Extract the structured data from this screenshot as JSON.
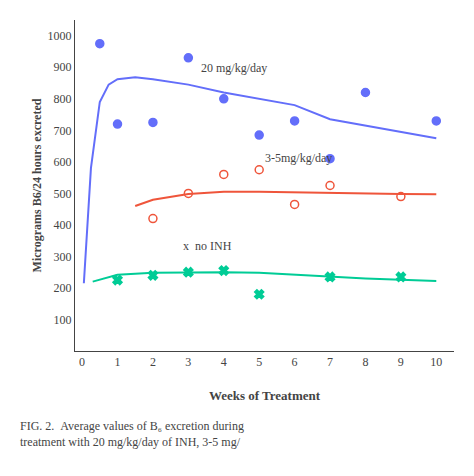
{
  "chart_data": {
    "type": "scatter",
    "xlabel": "Weeks of Treatment",
    "ylabel": "Micrograms B6/24 hours excreted",
    "caption": "FIG. 2.  Average values of B₆ excretion during\ntreatment with 20 mg/kg/day of INH, 3-5 mg/",
    "xlim": [
      -0.2,
      10.5
    ],
    "ylim": [
      0,
      1050
    ],
    "xticks": [
      0,
      1,
      2,
      3,
      4,
      5,
      6,
      7,
      8,
      9,
      10
    ],
    "yticks": [
      100,
      200,
      300,
      400,
      500,
      600,
      700,
      800,
      900,
      1000
    ],
    "grid": false,
    "series": [
      {
        "marker": "circle",
        "line_style": "solid",
        "x": [
          0.5,
          1,
          2,
          3,
          4,
          5,
          6,
          7,
          8,
          10
        ],
        "values": [
          975,
          720,
          725,
          930,
          800,
          685,
          730,
          610,
          820,
          730
        ],
        "curve_x": [
          0.05,
          0.25,
          0.5,
          0.75,
          1.0,
          1.5,
          2.0,
          3.0,
          4.0,
          5.0,
          6.0,
          7.0,
          8.0,
          9.0,
          10.0
        ],
        "curve_values": [
          215,
          580,
          790,
          845,
          862,
          868,
          862,
          845,
          820,
          800,
          780,
          735,
          715,
          695,
          675
        ],
        "label": "20 mg/kg/day",
        "label_x": 3.3,
        "label_y": 870
      },
      {
        "marker": "circle-open",
        "line_style": "solid",
        "x": [
          2,
          3,
          4,
          5,
          6,
          7,
          9
        ],
        "values": [
          420,
          500,
          560,
          575,
          465,
          525,
          490
        ],
        "curve_x": [
          1.5,
          2.0,
          3.0,
          4.0,
          5.0,
          6.0,
          7.0,
          8.0,
          9.0,
          10.0
        ],
        "curve_values": [
          460,
          480,
          498,
          505,
          505,
          503,
          500,
          500,
          498,
          497
        ],
        "label": "3-5mg/kg/day",
        "label_x": 5.1,
        "label_y": 585
      },
      {
        "marker": "x",
        "line_style": "solid",
        "x": [
          1,
          2,
          3,
          4,
          5,
          7,
          9
        ],
        "values": [
          225,
          240,
          250,
          255,
          180,
          235,
          235
        ],
        "curve_x": [
          0.3,
          1.0,
          2.0,
          3.0,
          4.0,
          5.0,
          6.0,
          7.0,
          8.0,
          9.0,
          10.0
        ],
        "curve_values": [
          220,
          242,
          248,
          250,
          250,
          248,
          242,
          235,
          230,
          226,
          222
        ],
        "label": "x  no INH",
        "label_x": 2.8,
        "label_y": 305
      }
    ]
  }
}
